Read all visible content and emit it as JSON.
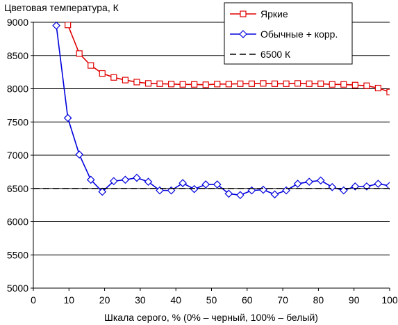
{
  "chart_data": {
    "type": "line",
    "ylabel": "Цветовая температура, К",
    "xlabel": "Шкала серого, % (0% – черный, 100% – белый)",
    "xlim": [
      0,
      100
    ],
    "ylim": [
      5000,
      9000
    ],
    "x_ticks": [
      0,
      10,
      20,
      30,
      40,
      50,
      60,
      70,
      80,
      90,
      100
    ],
    "y_ticks": [
      5000,
      5500,
      6000,
      6500,
      7000,
      7500,
      8000,
      8500,
      9000
    ],
    "grid": "horizontal",
    "legend_position": "top-right",
    "x": [
      6.45,
      9.68,
      12.9,
      16.13,
      19.35,
      22.58,
      25.81,
      29.03,
      32.26,
      35.48,
      38.71,
      41.94,
      45.16,
      48.39,
      51.61,
      54.84,
      58.06,
      61.29,
      64.52,
      67.74,
      70.97,
      74.19,
      77.42,
      80.65,
      83.87,
      87.1,
      90.32,
      93.55,
      96.77,
      100
    ],
    "series": [
      {
        "name": "Яркие",
        "color": "#e00000",
        "marker": "square",
        "values": [
          null,
          8960,
          8530,
          8350,
          8230,
          8170,
          8130,
          8100,
          8080,
          8075,
          8070,
          8065,
          8065,
          8060,
          8070,
          8070,
          8075,
          8075,
          8080,
          8075,
          8075,
          8080,
          8075,
          8075,
          8065,
          8065,
          8055,
          8045,
          8010,
          7950
        ]
      },
      {
        "name": "Обычные + корр.",
        "color": "#0000dd",
        "marker": "diamond",
        "values": [
          8950,
          7560,
          7010,
          6630,
          6450,
          6610,
          6630,
          6660,
          6600,
          6470,
          6470,
          6580,
          6490,
          6560,
          6560,
          6420,
          6400,
          6470,
          6480,
          6410,
          6470,
          6570,
          6600,
          6620,
          6520,
          6470,
          6530,
          6530,
          6570,
          6540
        ]
      },
      {
        "name": "6500 К",
        "color": "#000000",
        "style": "dashed",
        "reference_value": 6500
      }
    ]
  }
}
